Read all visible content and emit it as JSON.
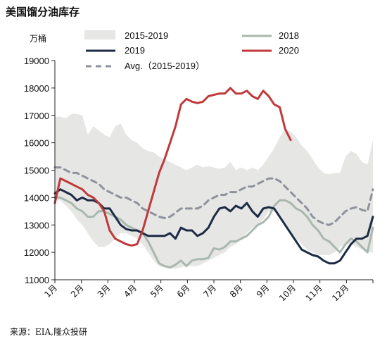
{
  "title": "美国馏分油库存",
  "unit": "万桶",
  "source": "来源：EIA,隆众投研",
  "colors": {
    "range": "#e6e6e4",
    "s2018": "#a9b8ae",
    "s2019": "#1c2b45",
    "s2020": "#c0393b",
    "avg": "#8e929c"
  },
  "chart_data": {
    "type": "line",
    "x_label": "",
    "y_label": "万桶",
    "ylim": [
      11000,
      19000
    ],
    "yticks": [
      11000,
      12000,
      13000,
      14000,
      15000,
      16000,
      17000,
      18000,
      19000
    ],
    "months": [
      "1月",
      "2月",
      "3月",
      "4月",
      "5月",
      "6月",
      "7月",
      "8月",
      "9月",
      "10月",
      "11月",
      "12月"
    ],
    "legend": {
      "range": "2015-2019",
      "s2018": "2018",
      "s2019": "2019",
      "s2020": "2020",
      "avg": "Avg.（2015-2019）"
    },
    "range_upper": [
      16950,
      16950,
      16900,
      17050,
      17050,
      17000,
      16300,
      16600,
      16450,
      16300,
      16200,
      16600,
      16700,
      16300,
      16100,
      16000,
      15800,
      15700,
      15650,
      15500,
      15400,
      15300,
      15200,
      15100,
      15000,
      15100,
      15200,
      15100,
      15150,
      15100,
      15050,
      15100,
      15300,
      15000,
      15100,
      15000,
      15100,
      15000,
      15200,
      15500,
      15800,
      16200,
      16500,
      16400,
      16200,
      15900,
      15700,
      15400,
      15100,
      14900,
      14850,
      14900,
      14900,
      15500,
      15700,
      15600,
      15300,
      15200,
      16100
    ],
    "range_lower": [
      13900,
      13900,
      13700,
      13500,
      13200,
      13000,
      12700,
      12400,
      12200,
      12200,
      12300,
      12500,
      12700,
      12700,
      12600,
      12500,
      12300,
      12000,
      11700,
      11500,
      11450,
      11400,
      11400,
      11450,
      11500,
      11500,
      11500,
      11600,
      11700,
      11800,
      11900,
      12000,
      12200,
      12300,
      12500,
      12700,
      12900,
      13000,
      13200,
      13500,
      13500,
      13300,
      13000,
      12700,
      12500,
      12300,
      12100,
      12000,
      11900,
      11900,
      11900,
      12000,
      12200,
      12300,
      12300,
      12200,
      12100,
      12000,
      12000
    ],
    "series_2018": [
      14000,
      14000,
      13900,
      13800,
      13600,
      13500,
      13300,
      13300,
      13500,
      13500,
      13400,
      13300,
      13200,
      13000,
      12900,
      12800,
      12700,
      12400,
      12000,
      11600,
      11500,
      11450,
      11550,
      11700,
      11500,
      11700,
      11750,
      11750,
      11800,
      12150,
      12100,
      12200,
      12400,
      12400,
      12500,
      12600,
      12800,
      13000,
      13100,
      13300,
      13700,
      13900,
      13900,
      13800,
      13600,
      13500,
      13300,
      13000,
      12800,
      12500,
      12400,
      12200,
      12000,
      12300,
      12500,
      12400,
      12200,
      12000,
      12900
    ],
    "series_2019": [
      14150,
      14300,
      14200,
      14100,
      13900,
      14000,
      13900,
      13900,
      13800,
      13600,
      13600,
      13300,
      13000,
      12850,
      12800,
      12800,
      12700,
      12600,
      12600,
      12600,
      12600,
      12700,
      12500,
      12900,
      12800,
      12800,
      12600,
      12700,
      12900,
      13300,
      13600,
      13650,
      13500,
      13700,
      13600,
      13800,
      13500,
      13300,
      13600,
      13650,
      13600,
      13300,
      13000,
      12700,
      12400,
      12100,
      12000,
      11900,
      11850,
      11700,
      11600,
      11600,
      11700,
      12000,
      12300,
      12500,
      12500,
      12600,
      13300
    ],
    "series_2020": [
      13800,
      14700,
      14600,
      14500,
      14400,
      14300,
      14100,
      14000,
      13800,
      13500,
      12800,
      12500,
      12400,
      12300,
      12250,
      12300,
      12800,
      13500,
      14200,
      14900,
      15400,
      16000,
      16600,
      17400,
      17600,
      17500,
      17450,
      17500,
      17700,
      17750,
      17800,
      17800,
      18000,
      17800,
      17800,
      17900,
      17700,
      17600,
      17900,
      17700,
      17400,
      17300,
      16500,
      16100
    ],
    "series_avg": [
      15100,
      15100,
      15000,
      14900,
      14900,
      14800,
      14700,
      14600,
      14500,
      14300,
      14200,
      14100,
      14000,
      14000,
      13900,
      13800,
      13600,
      13500,
      13400,
      13300,
      13250,
      13300,
      13450,
      13600,
      13600,
      13600,
      13600,
      13700,
      13900,
      14000,
      14100,
      14100,
      14200,
      14200,
      14300,
      14400,
      14400,
      14500,
      14600,
      14700,
      14700,
      14600,
      14400,
      14200,
      14000,
      13800,
      13600,
      13300,
      13150,
      13050,
      13000,
      13100,
      13300,
      13500,
      13600,
      13650,
      13550,
      13500,
      14300
    ]
  }
}
